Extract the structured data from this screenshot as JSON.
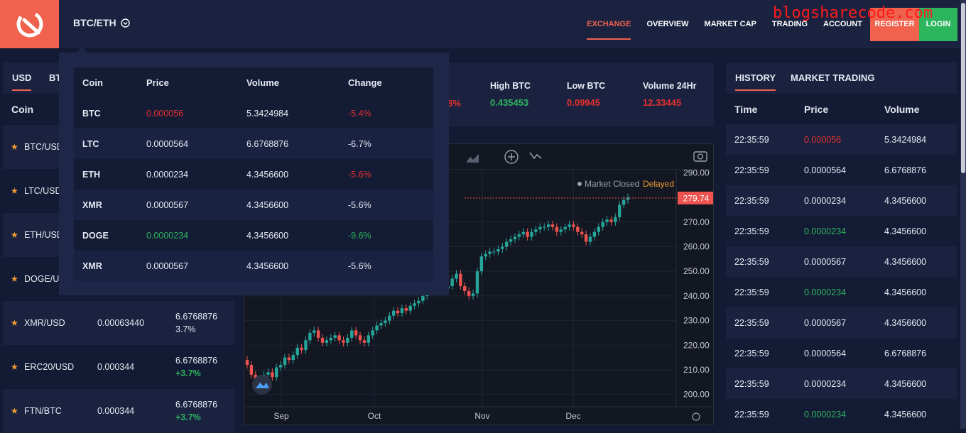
{
  "watermark": "blogsharecode.com",
  "header": {
    "pair": "BTC/ETH",
    "nav": [
      "EXCHANGE",
      "OVERVIEW",
      "MARKET CAP",
      "TRADING",
      "ACCOUNT"
    ],
    "register": "REGISTER",
    "login": "LOGIN",
    "accent": "#f0624d"
  },
  "left": {
    "tabs": [
      "USD",
      "BT"
    ],
    "header_coin": "Coin",
    "rows": [
      {
        "name": "BTC/USD",
        "price": "",
        "vol": "",
        "change": ""
      },
      {
        "name": "LTC/USD",
        "price": "",
        "vol": "",
        "change": ""
      },
      {
        "name": "ETH/USD",
        "price": "",
        "vol": "",
        "change": ""
      },
      {
        "name": "DOGE/U",
        "price": "",
        "vol": "",
        "change": ""
      },
      {
        "name": "XMR/USD",
        "price": "0.00063440",
        "vol": "6.6768876",
        "change": "3.7%"
      },
      {
        "name": "ERC20/USD",
        "price": "0.000344",
        "vol": "6.6768876",
        "change": "+3.7%"
      },
      {
        "name": "FTN/BTC",
        "price": "0.000344",
        "vol": "6.6768876",
        "change": "+3.7%"
      }
    ]
  },
  "stats": {
    "partial": "5%",
    "high_label": "High BTC",
    "high": "0.435453",
    "low_label": "Low BTC",
    "low": "0.09945",
    "vol_label": "Volume 24Hr",
    "vol": "12.33445"
  },
  "dropdown": {
    "headers": [
      "Coin",
      "Price",
      "Volume",
      "Change"
    ],
    "rows": [
      {
        "coin": "BTC",
        "price": "0.000056",
        "volume": "5.3424984",
        "change": "-5.4%",
        "pc": "red",
        "cc": "red"
      },
      {
        "coin": "LTC",
        "price": "0.0000564",
        "volume": "6.6768876",
        "change": "-6.7%",
        "pc": "",
        "cc": ""
      },
      {
        "coin": "ETH",
        "price": "0.0000234",
        "volume": "4.3456600",
        "change": "-5.6%",
        "pc": "",
        "cc": "red"
      },
      {
        "coin": "XMR",
        "price": "0.0000567",
        "volume": "4.3456600",
        "change": "-5.6%",
        "pc": "",
        "cc": ""
      },
      {
        "coin": "DOGE",
        "price": "0.0000234",
        "volume": "4.3456600",
        "change": "-9.6%",
        "pc": "green",
        "cc": "green"
      },
      {
        "coin": "XMR",
        "price": "0.0000567",
        "volume": "4.3456600",
        "change": "-5.6%",
        "pc": "",
        "cc": ""
      }
    ]
  },
  "chart": {
    "status": "Market Closed",
    "delayed": "Delayed",
    "last_price": "279.74",
    "y_ticks": [
      "290.00",
      "270.00",
      "260.00",
      "250.00",
      "240.00",
      "230.00",
      "220.00",
      "210.00",
      "200.00"
    ],
    "x_ticks": [
      "Sep",
      "Oct",
      "Nov",
      "Dec"
    ]
  },
  "chart_data": {
    "type": "candlestick",
    "title": "",
    "x": [
      "Sep",
      "Oct",
      "Nov",
      "Dec"
    ],
    "ylim": [
      195,
      293
    ],
    "last": 279.74,
    "closes": [
      212,
      208,
      206,
      205,
      208,
      209,
      207,
      211,
      212,
      215,
      214,
      216,
      219,
      218,
      222,
      225,
      226,
      223,
      221,
      222,
      223,
      224,
      222,
      221,
      223,
      226,
      224,
      222,
      221,
      224,
      226,
      228,
      229,
      230,
      232,
      234,
      233,
      235,
      234,
      236,
      237,
      238,
      240,
      242,
      244,
      246,
      245,
      243,
      244,
      247,
      249,
      244,
      242,
      240,
      241,
      250,
      256,
      257,
      258,
      258,
      259,
      260,
      262,
      263,
      264,
      265,
      266,
      264,
      266,
      267,
      268,
      268,
      269,
      268,
      266,
      267,
      268,
      269,
      268,
      266,
      265,
      262,
      264,
      266,
      268,
      270,
      271,
      270,
      272,
      277,
      279,
      280
    ]
  },
  "right": {
    "tabs": [
      "HISTORY",
      "MARKET TRADING"
    ],
    "headers": [
      "Time",
      "Price",
      "Volume"
    ],
    "rows": [
      {
        "time": "22:35:59",
        "price": "0.000056",
        "volume": "5.3424984",
        "pc": "red"
      },
      {
        "time": "22:35:59",
        "price": "0.0000564",
        "volume": "6.6768876",
        "pc": ""
      },
      {
        "time": "22:35:59",
        "price": "0.0000234",
        "volume": "4.3456600",
        "pc": ""
      },
      {
        "time": "22:35:59",
        "price": "0.0000234",
        "volume": "4.3456600",
        "pc": "green"
      },
      {
        "time": "22:35:59",
        "price": "0.0000567",
        "volume": "4.3456600",
        "pc": ""
      },
      {
        "time": "22:35:59",
        "price": "0.0000234",
        "volume": "4.3456600",
        "pc": "green"
      },
      {
        "time": "22:35:59",
        "price": "0.0000567",
        "volume": "4.3456600",
        "pc": ""
      },
      {
        "time": "22:35:59",
        "price": "0.0000564",
        "volume": "6.6768876",
        "pc": ""
      },
      {
        "time": "22:35:59",
        "price": "0.0000234",
        "volume": "4.3456600",
        "pc": ""
      },
      {
        "time": "22:35:59",
        "price": "0.0000234",
        "volume": "4.3456600",
        "pc": "green"
      }
    ]
  }
}
